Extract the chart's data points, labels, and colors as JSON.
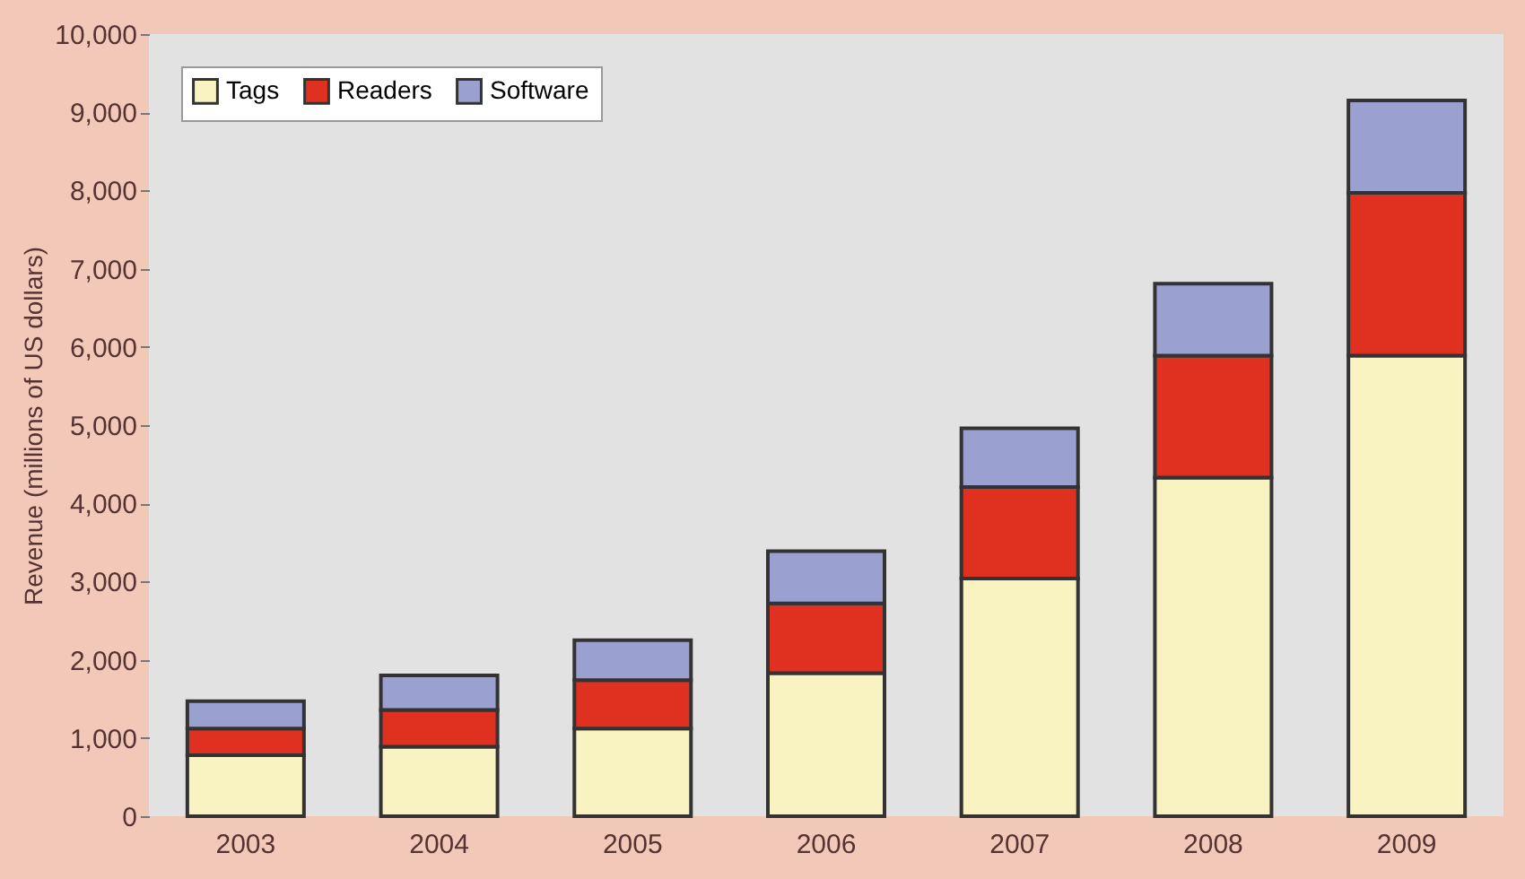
{
  "chart_data": {
    "type": "bar",
    "stacked": true,
    "ylabel": "Revenue (millions of US dollars)",
    "categories": [
      "2003",
      "2004",
      "2005",
      "2006",
      "2007",
      "2008",
      "2009"
    ],
    "series": [
      {
        "name": "Tags",
        "color": "#f8f3c0",
        "values": [
          780,
          890,
          1120,
          1830,
          3040,
          4330,
          5890
        ]
      },
      {
        "name": "Readers",
        "color": "#e03020",
        "values": [
          340,
          470,
          620,
          890,
          1170,
          1560,
          2080
        ]
      },
      {
        "name": "Software",
        "color": "#9aa0d0",
        "values": [
          350,
          440,
          510,
          670,
          750,
          920,
          1180
        ]
      }
    ],
    "ylim": [
      0,
      10000
    ],
    "yticks": [
      0,
      {
        "value": 1000,
        "label": "1,000"
      },
      {
        "value": 2000,
        "label": "2,000"
      },
      {
        "value": 3000,
        "label": "3,000"
      },
      {
        "value": 4000,
        "label": "4,000"
      },
      {
        "value": 5000,
        "label": "5,000"
      },
      {
        "value": 6000,
        "label": "6,000"
      },
      {
        "value": 7000,
        "label": "7,000"
      },
      {
        "value": 8000,
        "label": "8,000"
      },
      {
        "value": 9000,
        "label": "9,000"
      },
      {
        "value": 10000,
        "label": "10,000"
      }
    ],
    "grid": false,
    "legend": "top left"
  }
}
